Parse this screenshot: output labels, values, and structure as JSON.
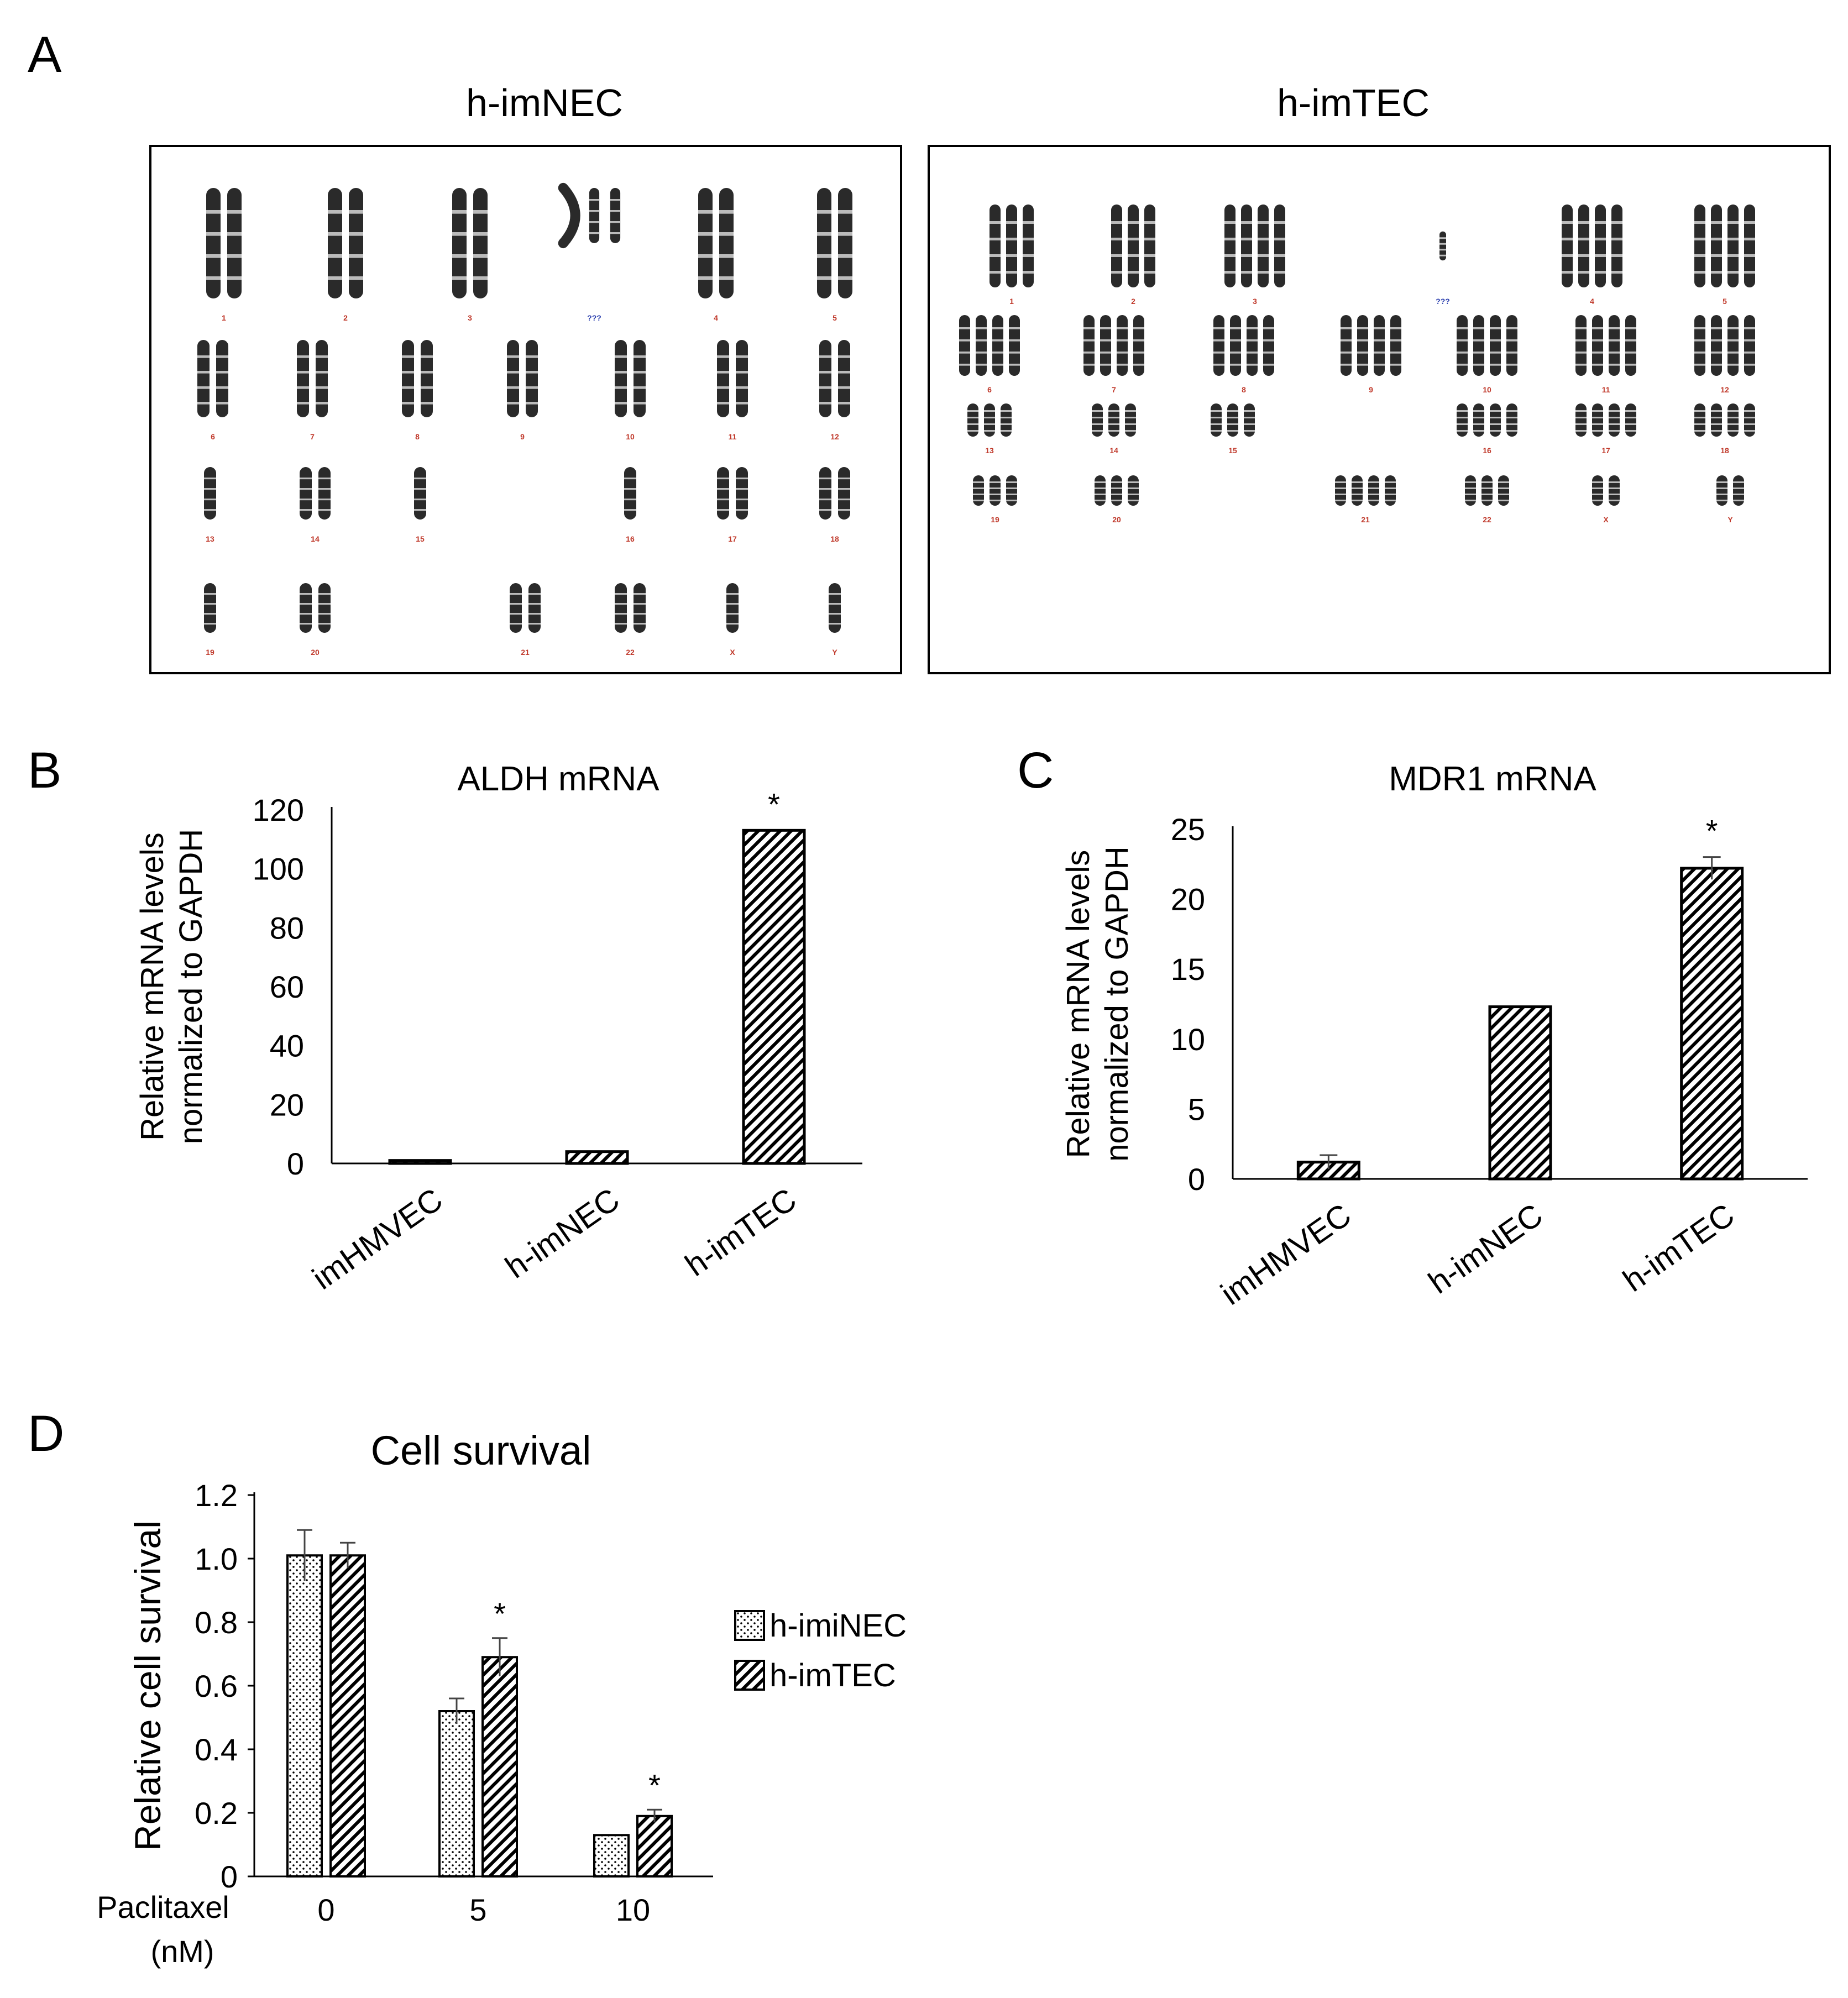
{
  "colors": {
    "ink": "#000000",
    "chromosome": "#2a2a2a",
    "chromosome_label": "#c0392b",
    "unknown_label": "#2b3fae",
    "error_bar": "#444444"
  },
  "panels": {
    "A": {
      "letter": "A",
      "karyotypes": [
        {
          "title": "h-imNEC",
          "chromosome_labels": [
            "1",
            "2",
            "3",
            "???",
            "4",
            "5",
            "6",
            "7",
            "8",
            "9",
            "10",
            "11",
            "12",
            "13",
            "14",
            "15",
            "16",
            "17",
            "18",
            "19",
            "20",
            "21",
            "22",
            "X",
            "Y"
          ]
        },
        {
          "title": "h-imTEC",
          "chromosome_labels": [
            "1",
            "2",
            "3",
            "???",
            "4",
            "5",
            "6",
            "7",
            "8",
            "9",
            "10",
            "11",
            "12",
            "13",
            "14",
            "15",
            "16",
            "17",
            "18",
            "19",
            "20",
            "21",
            "22",
            "X",
            "Y"
          ]
        }
      ]
    },
    "B": {
      "letter": "B"
    },
    "C": {
      "letter": "C"
    },
    "D": {
      "letter": "D"
    }
  },
  "chart_data": [
    {
      "panel": "B",
      "type": "bar",
      "title": "ALDH mRNA",
      "ylabel_lines": [
        "Relative  mRNA levels",
        "normalized to GAPDH"
      ],
      "categories": [
        "imHMVEC",
        "h-imNEC",
        "h-imTEC"
      ],
      "values": [
        1,
        4,
        113
      ],
      "errors": [
        0,
        0,
        0
      ],
      "significant": [
        false,
        false,
        true
      ],
      "significance_marker": "*",
      "ylim": [
        0,
        120
      ],
      "yticks": [
        0,
        20,
        40,
        60,
        80,
        100,
        120
      ],
      "fill": "hatch-diagonal",
      "grid": false
    },
    {
      "panel": "C",
      "type": "bar",
      "title": "MDR1 mRNA",
      "ylabel_lines": [
        "Relative  mRNA levels",
        "normalized to GAPDH"
      ],
      "categories": [
        "imHMVEC",
        "h-imNEC",
        "h-imTEC"
      ],
      "values": [
        1.2,
        12.3,
        22.2
      ],
      "errors": [
        0.5,
        0,
        0.8
      ],
      "significant": [
        false,
        false,
        true
      ],
      "significance_marker": "*",
      "ylim": [
        0,
        25
      ],
      "yticks": [
        0,
        5,
        10,
        15,
        20,
        25
      ],
      "fill": "hatch-diagonal",
      "grid": false
    },
    {
      "panel": "D",
      "type": "bar",
      "title": "Cell survival",
      "ylabel": "Relative cell survival",
      "xlabel_lines": [
        "Paclitaxel",
        "(nM)"
      ],
      "categories": [
        "0",
        "5",
        "10"
      ],
      "series": [
        {
          "name": "h-imiNEC",
          "fill": "dotted",
          "values": [
            1.01,
            0.52,
            0.13
          ],
          "errors": [
            0.08,
            0.04,
            0
          ],
          "significant": [
            false,
            false,
            false
          ]
        },
        {
          "name": "h-imTEC",
          "fill": "hatch-diagonal",
          "values": [
            1.01,
            0.69,
            0.19
          ],
          "errors": [
            0.04,
            0.06,
            0.02
          ],
          "significant": [
            false,
            true,
            true
          ]
        }
      ],
      "significance_marker": "*",
      "ylim": [
        0,
        1.2
      ],
      "yticks": [
        "0",
        "0.2",
        "0.4",
        "0.6",
        "0.8",
        "1.0",
        "1.2"
      ],
      "legend_position": "right",
      "grid": false
    }
  ]
}
